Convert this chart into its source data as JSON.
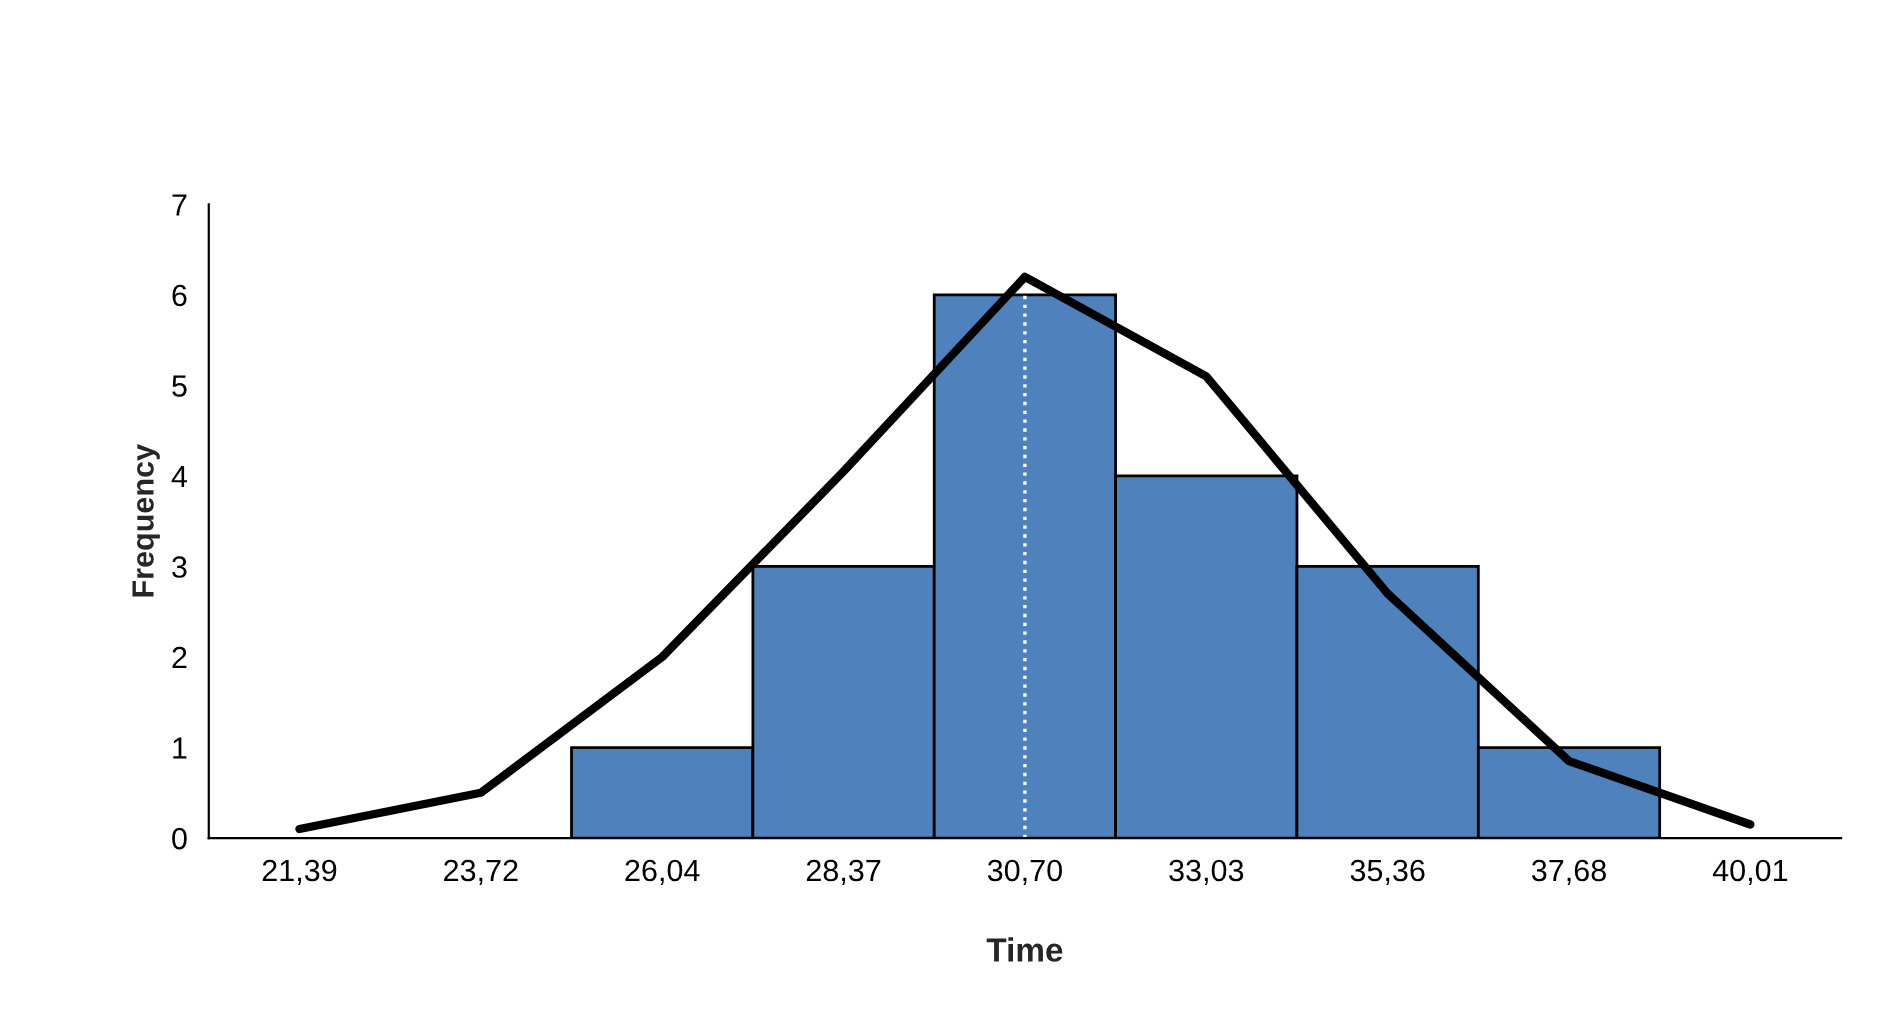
{
  "chart_data": {
    "type": "bar",
    "xlabel": "Time",
    "ylabel": "Frequency",
    "categories": [
      "21,39",
      "23,72",
      "26,04",
      "28,37",
      "30,70",
      "33,03",
      "35,36",
      "37,68",
      "40,01"
    ],
    "series": [
      {
        "color": "#4f81bd",
        "values": [
          0,
          0,
          1,
          3,
          6,
          4,
          3,
          1,
          0
        ]
      },
      {
        "type": "line",
        "color": "#000000",
        "values": [
          0.1,
          0.5,
          2.0,
          4.05,
          6.2,
          5.1,
          2.7,
          0.85,
          0.15
        ]
      }
    ],
    "ref_lines": [
      {
        "axis": "x",
        "value": "30,70",
        "color": "#ffffff",
        "line_style": "dotted"
      }
    ],
    "ylim": [
      0,
      7
    ],
    "yticks": [
      0,
      1,
      2,
      3,
      4,
      5,
      6,
      7
    ],
    "grid": false,
    "legend": false
  }
}
